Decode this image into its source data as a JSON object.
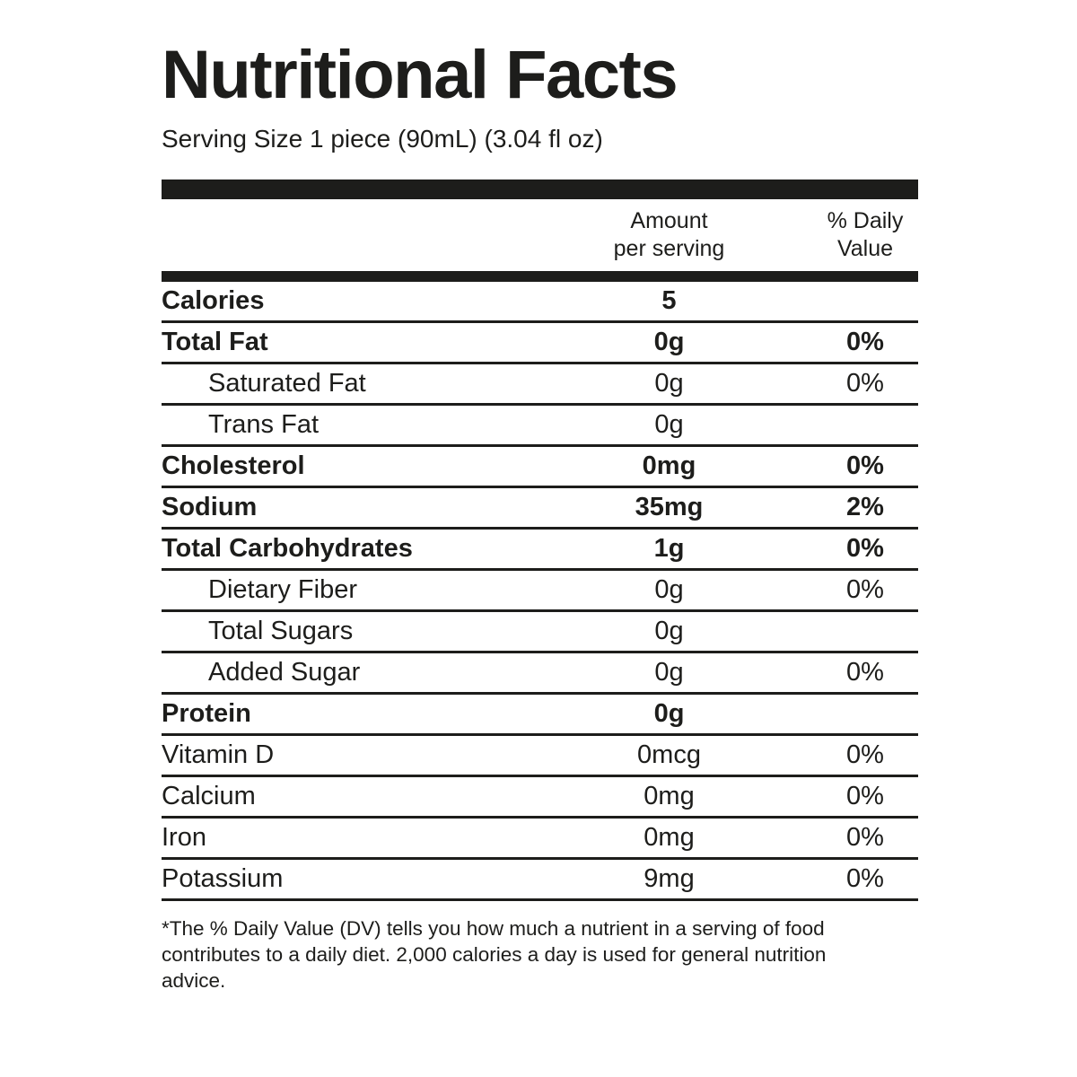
{
  "page": {
    "title": "Nutritional Facts",
    "serving_size": "Serving Size 1 piece (90mL) (3.04 fl oz)"
  },
  "header": {
    "amount_label": "Amount\nper serving",
    "daily_value_label": "% Daily\nValue"
  },
  "rows": [
    {
      "label": "Calories",
      "amount": "5",
      "dv": "",
      "bold": true,
      "indent": false
    },
    {
      "label": "Total Fat",
      "amount": "0g",
      "dv": "0%",
      "bold": true,
      "indent": false
    },
    {
      "label": "Saturated Fat",
      "amount": "0g",
      "dv": "0%",
      "bold": false,
      "indent": true
    },
    {
      "label": "Trans Fat",
      "amount": "0g",
      "dv": "",
      "bold": false,
      "indent": true
    },
    {
      "label": "Cholesterol",
      "amount": "0mg",
      "dv": "0%",
      "bold": true,
      "indent": false
    },
    {
      "label": "Sodium",
      "amount": "35mg",
      "dv": "2%",
      "bold": true,
      "indent": false
    },
    {
      "label": "Total Carbohydrates",
      "amount": "1g",
      "dv": "0%",
      "bold": true,
      "indent": false
    },
    {
      "label": "Dietary Fiber",
      "amount": "0g",
      "dv": "0%",
      "bold": false,
      "indent": true
    },
    {
      "label": "Total Sugars",
      "amount": "0g",
      "dv": "",
      "bold": false,
      "indent": true
    },
    {
      "label": "Added Sugar",
      "amount": "0g",
      "dv": "0%",
      "bold": false,
      "indent": true
    },
    {
      "label": "Protein",
      "amount": "0g",
      "dv": "",
      "bold": true,
      "indent": false
    },
    {
      "label": "Vitamin D",
      "amount": "0mcg",
      "dv": "0%",
      "bold": false,
      "indent": false
    },
    {
      "label": "Calcium",
      "amount": "0mg",
      "dv": "0%",
      "bold": false,
      "indent": false
    },
    {
      "label": "Iron",
      "amount": "0mg",
      "dv": "0%",
      "bold": false,
      "indent": false
    },
    {
      "label": "Potassium",
      "amount": "9mg",
      "dv": "0%",
      "bold": false,
      "indent": false
    }
  ],
  "footnote": "*The % Daily Value (DV) tells you how much a nutrient in a serving of food contributes to a daily diet. 2,000 calories a day is used for general nutrition advice.",
  "colors": {
    "text": "#1d1d1b",
    "background": "#ffffff"
  }
}
